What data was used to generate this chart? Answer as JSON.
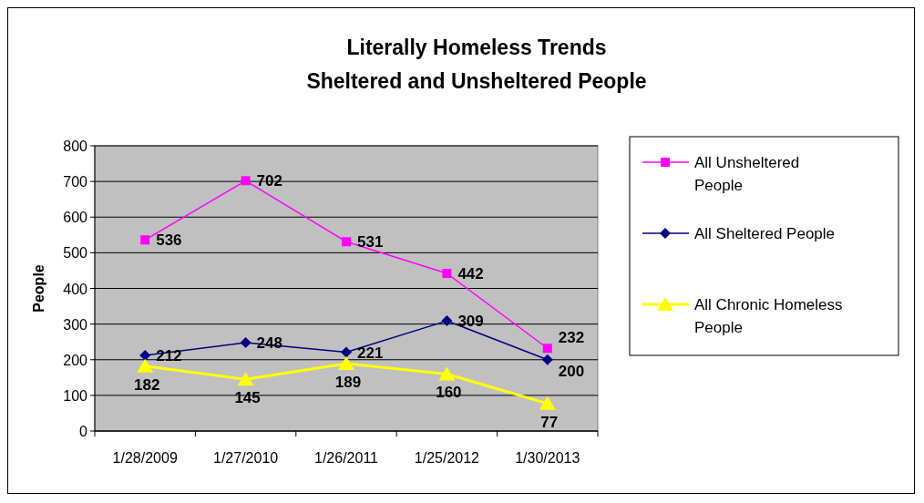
{
  "chart_data": {
    "type": "line",
    "title": "Literally Homeless Trends\nSheltered and Unsheltered People",
    "ylabel": "People",
    "categories": [
      "1/28/2009",
      "1/27/2010",
      "1/26/2011",
      "1/25/2012",
      "1/30/2013"
    ],
    "ylim": [
      0,
      800
    ],
    "yticks": [
      0,
      100,
      200,
      300,
      400,
      500,
      600,
      700,
      800
    ],
    "grid": "y",
    "legend": "right",
    "data_labels": true,
    "series": [
      {
        "name": "All Unsheltered People",
        "color": "#ff00ff",
        "marker": "square",
        "values": [
          536,
          702,
          531,
          442,
          232
        ]
      },
      {
        "name": "All Sheltered People",
        "color": "#000080",
        "marker": "diamond",
        "values": [
          212,
          248,
          221,
          309,
          200
        ]
      },
      {
        "name": "All Chronic Homeless People",
        "color": "#ffff00",
        "marker": "triangle",
        "values": [
          182,
          145,
          189,
          160,
          77
        ]
      }
    ]
  }
}
